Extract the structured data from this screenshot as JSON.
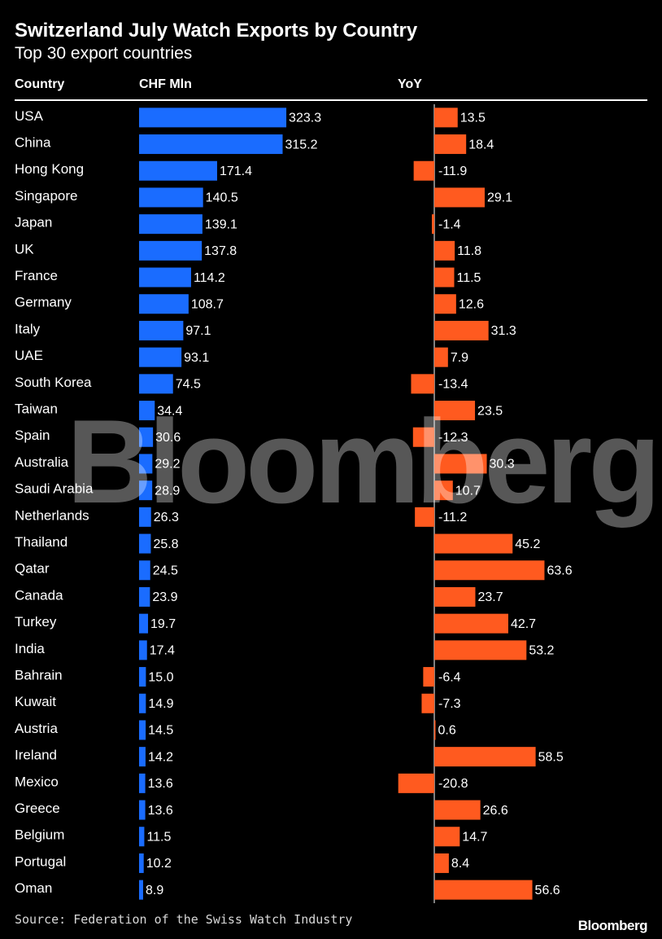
{
  "header": {
    "title": "Switzerland July Watch Exports by Country",
    "subtitle": "Top 30 export countries",
    "col_country": "Country",
    "col_value": "CHF Mln",
    "col_yoy": "YoY"
  },
  "footer": {
    "source": "Source: Federation of the Swiss Watch Industry",
    "logo": "Bloomberg"
  },
  "watermark": "Bloomberg",
  "colors": {
    "value_bar": "#1a6cff",
    "yoy_bar": "#ff5a1f",
    "background": "#000000"
  },
  "chart_data": {
    "type": "bar",
    "title": "Switzerland July Watch Exports by Country",
    "subtitle": "Top 30 export countries",
    "categories": [
      "USA",
      "China",
      "Hong Kong",
      "Singapore",
      "Japan",
      "UK",
      "France",
      "Germany",
      "Italy",
      "UAE",
      "South Korea",
      "Taiwan",
      "Spain",
      "Australia",
      "Saudi Arabia",
      "Netherlands",
      "Thailand",
      "Qatar",
      "Canada",
      "Turkey",
      "India",
      "Bahrain",
      "Kuwait",
      "Austria",
      "Ireland",
      "Mexico",
      "Greece",
      "Belgium",
      "Portugal",
      "Oman"
    ],
    "series": [
      {
        "name": "CHF Mln",
        "values": [
          323.3,
          315.2,
          171.4,
          140.5,
          139.1,
          137.8,
          114.2,
          108.7,
          97.1,
          93.1,
          74.5,
          34.4,
          30.6,
          29.2,
          28.9,
          26.3,
          25.8,
          24.5,
          23.9,
          19.7,
          17.4,
          15.0,
          14.9,
          14.5,
          14.2,
          13.6,
          13.6,
          11.5,
          10.2,
          8.9
        ],
        "labels": [
          "323.3",
          "315.2",
          "171.4",
          "140.5",
          "139.1",
          "137.8",
          "114.2",
          "108.7",
          "97.1",
          "93.1",
          "74.5",
          "34.4",
          "30.6",
          "29.2",
          "28.9",
          "26.3",
          "25.8",
          "24.5",
          "23.9",
          "19.7",
          "17.4",
          "15.0",
          "14.9",
          "14.5",
          "14.2",
          "13.6",
          "13.6",
          "11.5",
          "10.2",
          "8.9"
        ]
      },
      {
        "name": "YoY",
        "values": [
          13.5,
          18.4,
          -11.9,
          29.1,
          -1.4,
          11.8,
          11.5,
          12.6,
          31.3,
          7.9,
          -13.4,
          23.5,
          -12.3,
          30.3,
          10.7,
          -11.2,
          45.2,
          63.6,
          23.7,
          42.7,
          53.2,
          -6.4,
          -7.3,
          0.6,
          58.5,
          -20.8,
          26.6,
          14.7,
          8.4,
          56.6
        ],
        "labels": [
          "13.5",
          "18.4",
          "-11.9",
          "29.1",
          "-1.4",
          "11.8",
          "11.5",
          "12.6",
          "31.3",
          "7.9",
          "-13.4",
          "23.5",
          "-12.3",
          "30.3",
          "10.7",
          "-11.2",
          "45.2",
          "63.6",
          "23.7",
          "42.7",
          "53.2",
          "-6.4",
          "-7.3",
          "0.6",
          "58.5",
          "-20.8",
          "26.6",
          "14.7",
          "8.4",
          "56.6"
        ]
      }
    ],
    "grid": false,
    "legend": "none"
  }
}
